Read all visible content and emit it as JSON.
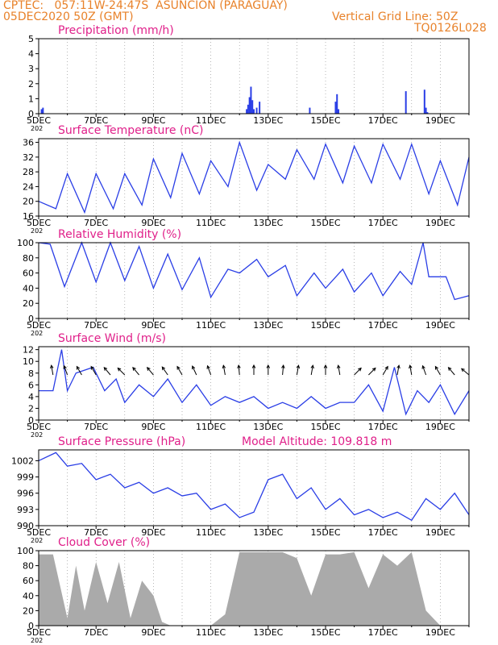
{
  "header": {
    "line1": "CPTEC:   057:11W-24:47S  ASUNCION (PARAGUAY)",
    "line2": "05DEC2020 50Z (GMT)",
    "grid_note": "Vertical Grid Line: 50Z",
    "code": "TQ0126L028"
  },
  "colors": {
    "header": "#e8822a",
    "title": "#e0208a",
    "line": "#2a3ee6",
    "bar": "#aaaaaa",
    "grid": "#888888"
  },
  "x_ticks": [
    "5DEC",
    "7DEC",
    "9DEC",
    "11DEC",
    "13DEC",
    "15DEC",
    "17DEC",
    "19DEC"
  ],
  "x_tick_sub": "202",
  "chart_data": [
    {
      "type": "bar",
      "title": "Precipitation (mm/h)",
      "ylim": [
        0,
        5
      ],
      "yticks": [
        0,
        1,
        2,
        3,
        4,
        5
      ],
      "x_unit": "days since 5DEC 00Z",
      "x": [
        0.1,
        0.15,
        7.25,
        7.3,
        7.35,
        7.4,
        7.45,
        7.5,
        7.6,
        7.7,
        9.45,
        10.35,
        10.4,
        10.45,
        12.8,
        13.45,
        13.5,
        13.55
      ],
      "values": [
        0.3,
        0.4,
        0.3,
        0.6,
        1.1,
        1.8,
        0.9,
        0.3,
        0.4,
        0.8,
        0.4,
        0.8,
        1.3,
        0.3,
        1.5,
        1.6,
        0.4,
        0.1
      ]
    },
    {
      "type": "line",
      "title": "Surface Temperature (nC)",
      "ylim": [
        16,
        37
      ],
      "yticks": [
        16,
        20,
        24,
        28,
        32,
        36
      ],
      "x": [
        0,
        0.6,
        1.0,
        1.6,
        2.0,
        2.6,
        3.0,
        3.6,
        4.0,
        4.6,
        5.0,
        5.6,
        6.0,
        6.6,
        7.0,
        7.6,
        8.0,
        8.6,
        9.0,
        9.6,
        10.0,
        10.6,
        11.0,
        11.6,
        12.0,
        12.6,
        13.0,
        13.6,
        14.0,
        14.6,
        15.0
      ],
      "values": [
        20,
        18,
        27.5,
        17,
        27.5,
        18,
        27.5,
        19,
        31.5,
        21,
        33,
        22,
        31,
        24,
        36,
        23,
        30,
        26,
        34,
        26,
        35.5,
        25,
        35,
        25,
        35.5,
        26,
        35.5,
        22,
        31,
        19,
        32
      ]
    },
    {
      "type": "line",
      "title": "Relative Humidity (%)",
      "ylim": [
        0,
        100
      ],
      "yticks": [
        0,
        20,
        40,
        60,
        80,
        100
      ],
      "x": [
        0,
        0.4,
        0.9,
        1.5,
        2.0,
        2.5,
        3.0,
        3.5,
        4.0,
        4.5,
        5.0,
        5.6,
        6.0,
        6.6,
        7.0,
        7.6,
        8.0,
        8.6,
        9.0,
        9.6,
        10.0,
        10.6,
        11.0,
        11.6,
        12.0,
        12.6,
        13.0,
        13.4,
        13.6,
        14.2,
        14.5,
        15.0
      ],
      "values": [
        100,
        98,
        42,
        100,
        48,
        100,
        50,
        95,
        40,
        85,
        38,
        80,
        28,
        65,
        60,
        78,
        55,
        70,
        30,
        60,
        40,
        65,
        35,
        60,
        30,
        62,
        45,
        100,
        55,
        55,
        25,
        30
      ]
    },
    {
      "type": "line",
      "title": "Surface Wind (m/s)",
      "ylim": [
        0,
        12.5
      ],
      "yticks": [
        0,
        2,
        4,
        6,
        8,
        10,
        12
      ],
      "x": [
        0,
        0.5,
        0.8,
        1.0,
        1.3,
        1.9,
        2.3,
        2.7,
        3.0,
        3.5,
        4.0,
        4.5,
        5.0,
        5.5,
        6.0,
        6.5,
        7.0,
        7.5,
        8.0,
        8.5,
        9.0,
        9.5,
        10.0,
        10.5,
        11.0,
        11.5,
        12.0,
        12.4,
        12.8,
        13.2,
        13.6,
        14.0,
        14.5,
        15.0
      ],
      "values": [
        5,
        5,
        12,
        5,
        8,
        9,
        5,
        7,
        3,
        6,
        4,
        7,
        3,
        6,
        2.5,
        4,
        3,
        4,
        2,
        3,
        2,
        4,
        2,
        3,
        3,
        6,
        1.5,
        9,
        1,
        5,
        3,
        6,
        1,
        5
      ],
      "arrows_x": [
        0.5,
        1.0,
        1.5,
        2.0,
        2.5,
        3.0,
        3.5,
        4.0,
        4.5,
        5.0,
        5.5,
        6.0,
        6.5,
        7.0,
        7.5,
        8.0,
        8.5,
        9.0,
        9.5,
        10.0,
        10.5,
        11.0,
        11.5,
        12.0,
        12.5,
        13.0,
        13.5,
        14.0,
        14.5,
        15.0
      ],
      "arrows_dir_deg": [
        100,
        110,
        120,
        120,
        130,
        135,
        130,
        130,
        125,
        120,
        115,
        110,
        100,
        95,
        90,
        90,
        85,
        80,
        80,
        90,
        100,
        45,
        45,
        60,
        80,
        100,
        110,
        120,
        130,
        140
      ]
    },
    {
      "type": "line",
      "title": "Surface Pressure (hPa)",
      "annotation": "Model Altitude: 109.818  m",
      "ylim": [
        990,
        1004
      ],
      "yticks": [
        990,
        993,
        996,
        999,
        1002
      ],
      "x": [
        0,
        0.6,
        1.0,
        1.5,
        2.0,
        2.5,
        3.0,
        3.5,
        4.0,
        4.5,
        5.0,
        5.5,
        6.0,
        6.5,
        7.0,
        7.5,
        8.0,
        8.5,
        9.0,
        9.5,
        10.0,
        10.5,
        11.0,
        11.5,
        12.0,
        12.5,
        13.0,
        13.5,
        14.0,
        14.5,
        15.0
      ],
      "values": [
        1002,
        1003.5,
        1001,
        1001.5,
        998.5,
        999.5,
        997,
        998,
        996,
        997,
        995.5,
        996,
        993,
        994,
        991.5,
        992.5,
        998.5,
        999.5,
        995,
        997,
        993,
        995,
        992,
        993,
        991.5,
        992.5,
        991,
        995,
        993,
        996,
        992
      ]
    },
    {
      "type": "area",
      "title": "Cloud Cover (%)",
      "ylim": [
        0,
        100
      ],
      "yticks": [
        0,
        20,
        40,
        60,
        80,
        100
      ],
      "x": [
        0,
        0.5,
        1.0,
        1.3,
        1.6,
        2.0,
        2.4,
        2.8,
        3.2,
        3.6,
        4.0,
        4.3,
        4.6,
        5.0,
        5.5,
        6.0,
        6.5,
        7.0,
        7.5,
        8.0,
        8.5,
        9.0,
        9.5,
        10.0,
        10.5,
        11.0,
        11.5,
        12.0,
        12.5,
        13.0,
        13.5,
        14.0,
        14.5,
        15.0
      ],
      "values": [
        95,
        95,
        10,
        80,
        20,
        85,
        30,
        85,
        10,
        60,
        40,
        5,
        0,
        0,
        0,
        0,
        15,
        98,
        98,
        98,
        98,
        90,
        40,
        95,
        95,
        98,
        50,
        95,
        80,
        98,
        20,
        0,
        0,
        0
      ]
    }
  ]
}
